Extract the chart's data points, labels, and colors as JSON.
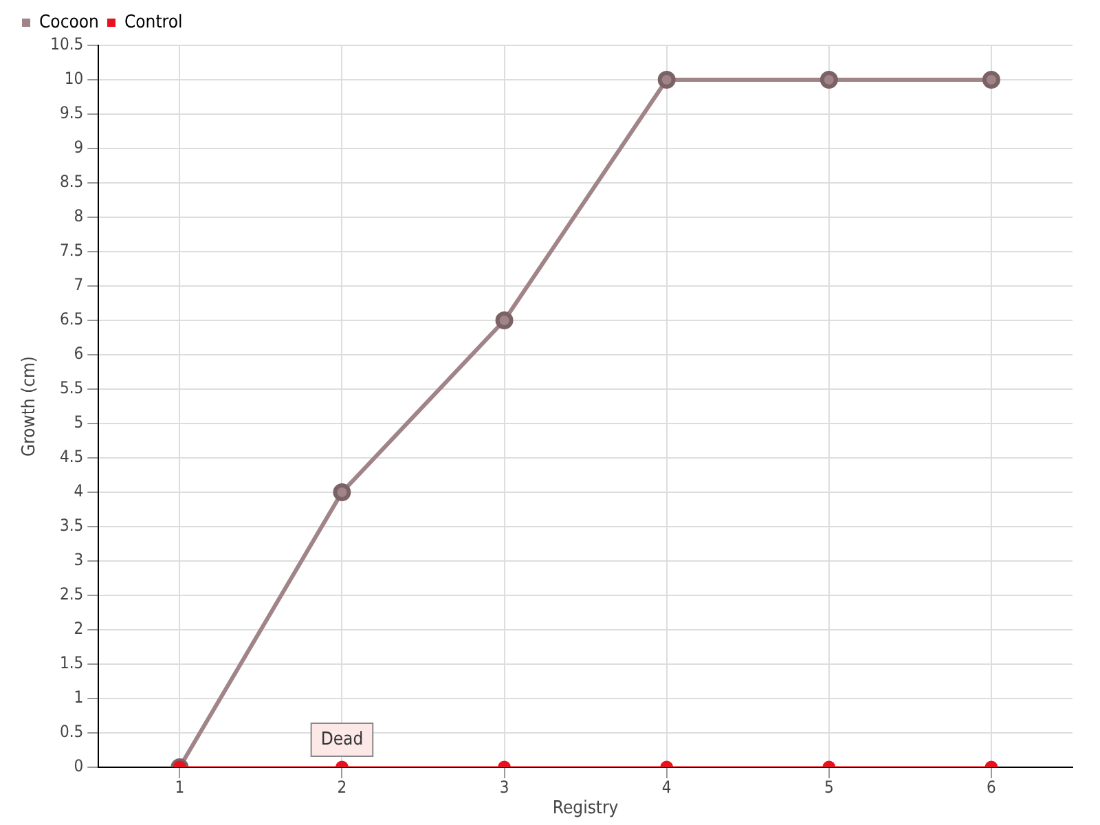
{
  "chart_data": {
    "type": "line",
    "xlabel": "Registry",
    "ylabel": "Growth (cm)",
    "categories": [
      "1",
      "2",
      "3",
      "4",
      "5",
      "6"
    ],
    "series": [
      {
        "name": "Cocoon",
        "color": "#a08488",
        "values": [
          0,
          4,
          6.5,
          10,
          10,
          10
        ]
      },
      {
        "name": "Control",
        "color": "#e8121e",
        "values": [
          0,
          0,
          0,
          0,
          0,
          0
        ]
      }
    ],
    "ylim": [
      0,
      10.5
    ],
    "yticks": [
      0,
      0.5,
      1,
      1.5,
      2,
      2.5,
      3,
      3.5,
      4,
      4.5,
      5,
      5.5,
      6,
      6.5,
      7,
      7.5,
      8,
      8.5,
      9,
      9.5,
      10,
      10.5
    ],
    "grid": true,
    "legend": "top left",
    "marker": "circle",
    "annotations": [
      {
        "text": "Dead",
        "x": "2",
        "y": 0
      }
    ]
  }
}
